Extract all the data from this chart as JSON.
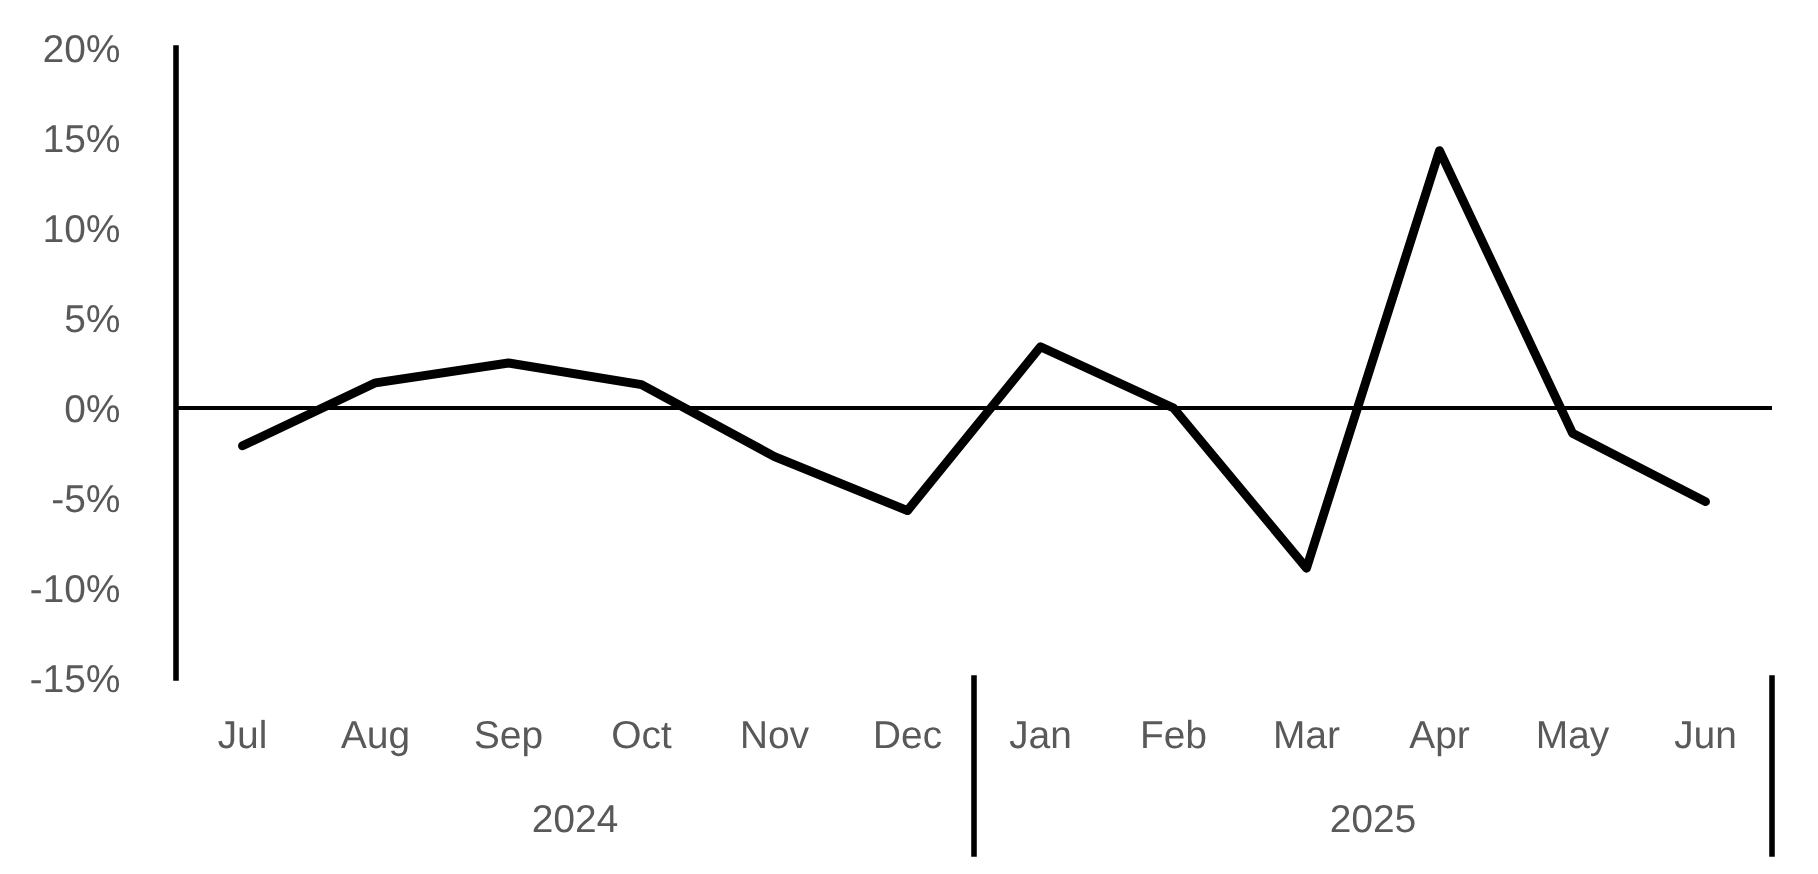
{
  "chart_data": {
    "type": "line",
    "categories": [
      "Jul",
      "Aug",
      "Sep",
      "Oct",
      "Nov",
      "Dec",
      "Jan",
      "Feb",
      "Mar",
      "Apr",
      "May",
      "Jun"
    ],
    "series": [
      {
        "color": "#000000",
        "values": [
          -2.1,
          1.4,
          2.5,
          1.3,
          -2.7,
          -5.7,
          3.4,
          0,
          -8.9,
          14.3,
          -1.4,
          -5.2
        ]
      }
    ],
    "ylim": [
      -15,
      20
    ],
    "yticks": [
      {
        "value": 20,
        "label": "20%"
      },
      {
        "value": 15,
        "label": "15%"
      },
      {
        "value": 10,
        "label": "10%"
      },
      {
        "value": 5,
        "label": "5%"
      },
      {
        "value": 0,
        "label": "0%"
      },
      {
        "value": -5,
        "label": "-5%"
      },
      {
        "value": -10,
        "label": "-10%"
      },
      {
        "value": -15,
        "label": "-15%"
      }
    ],
    "annotations": [
      "2024",
      "2025"
    ],
    "ref_lines": [
      {
        "axis": "y",
        "value": 0,
        "color": "#000000"
      }
    ],
    "grid": false,
    "legend": false,
    "marker": "none",
    "line_style": "solid"
  }
}
